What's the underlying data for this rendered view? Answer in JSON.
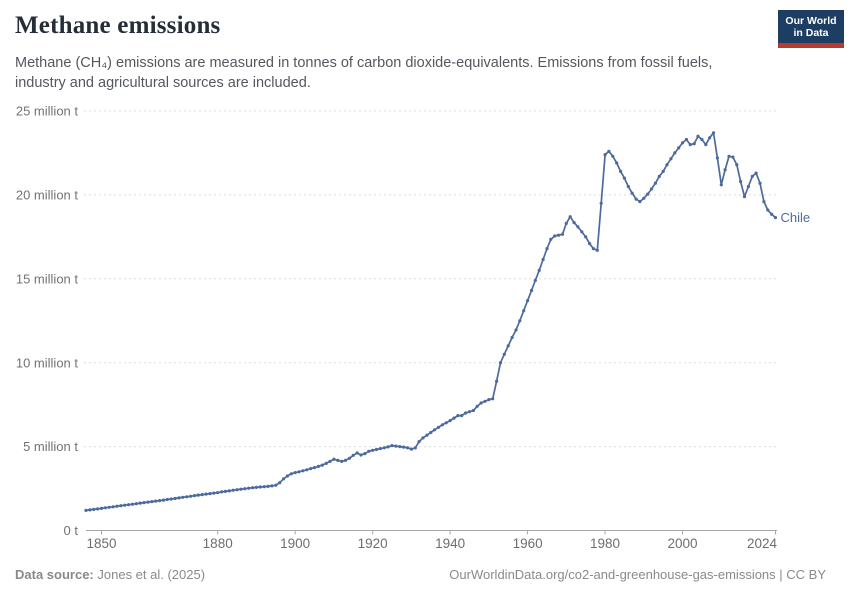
{
  "header": {
    "title": "Methane emissions",
    "subtitle": "Methane (CH₄) emissions are measured in tonnes of carbon dioxide-equivalents. Emissions from fossil fuels, industry and agricultural sources are included.",
    "logo_line1": "Our World",
    "logo_line2": "in Data",
    "logo_bg": "#1d3d63",
    "logo_accent": "#b73a31"
  },
  "footer": {
    "source_label": "Data source:",
    "source_value": "Jones et al. (2025)",
    "license": "OurWorldinData.org/co2-and-greenhouse-gas-emissions | CC BY"
  },
  "chart_data": {
    "type": "line",
    "title": "Methane emissions",
    "xlabel": "",
    "ylabel": "",
    "unit": "million tonnes of carbon dioxide-equivalents",
    "x_range": [
      1846,
      2024
    ],
    "y_range": [
      0,
      25
    ],
    "grid": "horizontal-dashed",
    "legend_position": "end-of-line-label",
    "entity_label": "Chile",
    "line_color": "#4C6A9C",
    "x_ticks": [
      1850,
      1880,
      1900,
      1920,
      1940,
      1960,
      1980,
      2000,
      2024
    ],
    "y_ticks": [
      {
        "value": 0,
        "label": "0 t"
      },
      {
        "value": 5,
        "label": "5 million t"
      },
      {
        "value": 10,
        "label": "10 million t"
      },
      {
        "value": 15,
        "label": "15 million t"
      },
      {
        "value": 20,
        "label": "20 million t"
      },
      {
        "value": 25,
        "label": "25 million t"
      }
    ],
    "series": [
      {
        "name": "Chile",
        "color": "#4C6A9C",
        "points": [
          [
            1846,
            1.2
          ],
          [
            1847,
            1.23
          ],
          [
            1848,
            1.26
          ],
          [
            1849,
            1.29
          ],
          [
            1850,
            1.32
          ],
          [
            1851,
            1.35
          ],
          [
            1852,
            1.38
          ],
          [
            1853,
            1.41
          ],
          [
            1854,
            1.45
          ],
          [
            1855,
            1.48
          ],
          [
            1856,
            1.51
          ],
          [
            1857,
            1.54
          ],
          [
            1858,
            1.57
          ],
          [
            1859,
            1.6
          ],
          [
            1860,
            1.63
          ],
          [
            1861,
            1.66
          ],
          [
            1862,
            1.69
          ],
          [
            1863,
            1.72
          ],
          [
            1864,
            1.75
          ],
          [
            1865,
            1.78
          ],
          [
            1866,
            1.81
          ],
          [
            1867,
            1.85
          ],
          [
            1868,
            1.88
          ],
          [
            1869,
            1.91
          ],
          [
            1870,
            1.94
          ],
          [
            1871,
            1.98
          ],
          [
            1872,
            2.01
          ],
          [
            1873,
            2.04
          ],
          [
            1874,
            2.08
          ],
          [
            1875,
            2.11
          ],
          [
            1876,
            2.14
          ],
          [
            1877,
            2.17
          ],
          [
            1878,
            2.2
          ],
          [
            1879,
            2.23
          ],
          [
            1880,
            2.26
          ],
          [
            1881,
            2.3
          ],
          [
            1882,
            2.33
          ],
          [
            1883,
            2.36
          ],
          [
            1884,
            2.4
          ],
          [
            1885,
            2.43
          ],
          [
            1886,
            2.46
          ],
          [
            1887,
            2.49
          ],
          [
            1888,
            2.52
          ],
          [
            1889,
            2.55
          ],
          [
            1890,
            2.57
          ],
          [
            1891,
            2.59
          ],
          [
            1892,
            2.61
          ],
          [
            1893,
            2.63
          ],
          [
            1894,
            2.66
          ],
          [
            1895,
            2.7
          ],
          [
            1896,
            2.85
          ],
          [
            1897,
            3.08
          ],
          [
            1898,
            3.25
          ],
          [
            1899,
            3.38
          ],
          [
            1900,
            3.45
          ],
          [
            1901,
            3.5
          ],
          [
            1902,
            3.56
          ],
          [
            1903,
            3.62
          ],
          [
            1904,
            3.69
          ],
          [
            1905,
            3.75
          ],
          [
            1906,
            3.82
          ],
          [
            1907,
            3.9
          ],
          [
            1908,
            4.0
          ],
          [
            1909,
            4.12
          ],
          [
            1910,
            4.25
          ],
          [
            1911,
            4.18
          ],
          [
            1912,
            4.12
          ],
          [
            1913,
            4.18
          ],
          [
            1914,
            4.3
          ],
          [
            1915,
            4.48
          ],
          [
            1916,
            4.62
          ],
          [
            1917,
            4.5
          ],
          [
            1918,
            4.58
          ],
          [
            1919,
            4.72
          ],
          [
            1920,
            4.78
          ],
          [
            1921,
            4.83
          ],
          [
            1922,
            4.88
          ],
          [
            1923,
            4.93
          ],
          [
            1924,
            4.98
          ],
          [
            1925,
            5.06
          ],
          [
            1926,
            5.03
          ],
          [
            1927,
            5.0
          ],
          [
            1928,
            4.97
          ],
          [
            1929,
            4.93
          ],
          [
            1930,
            4.85
          ],
          [
            1931,
            4.92
          ],
          [
            1932,
            5.3
          ],
          [
            1933,
            5.52
          ],
          [
            1934,
            5.68
          ],
          [
            1935,
            5.84
          ],
          [
            1936,
            6.0
          ],
          [
            1937,
            6.15
          ],
          [
            1938,
            6.3
          ],
          [
            1939,
            6.42
          ],
          [
            1940,
            6.55
          ],
          [
            1941,
            6.7
          ],
          [
            1942,
            6.85
          ],
          [
            1943,
            6.85
          ],
          [
            1944,
            7.0
          ],
          [
            1945,
            7.08
          ],
          [
            1946,
            7.15
          ],
          [
            1947,
            7.4
          ],
          [
            1948,
            7.6
          ],
          [
            1949,
            7.7
          ],
          [
            1950,
            7.8
          ],
          [
            1951,
            7.85
          ],
          [
            1952,
            8.9
          ],
          [
            1953,
            10.0
          ],
          [
            1954,
            10.5
          ],
          [
            1955,
            11.0
          ],
          [
            1956,
            11.5
          ],
          [
            1957,
            11.95
          ],
          [
            1958,
            12.5
          ],
          [
            1959,
            13.1
          ],
          [
            1960,
            13.7
          ],
          [
            1961,
            14.3
          ],
          [
            1962,
            14.9
          ],
          [
            1963,
            15.5
          ],
          [
            1964,
            16.15
          ],
          [
            1965,
            16.8
          ],
          [
            1966,
            17.35
          ],
          [
            1967,
            17.55
          ],
          [
            1968,
            17.6
          ],
          [
            1969,
            17.65
          ],
          [
            1970,
            18.3
          ],
          [
            1971,
            18.7
          ],
          [
            1972,
            18.35
          ],
          [
            1973,
            18.1
          ],
          [
            1974,
            17.8
          ],
          [
            1975,
            17.5
          ],
          [
            1976,
            17.1
          ],
          [
            1977,
            16.8
          ],
          [
            1978,
            16.7
          ],
          [
            1979,
            19.5
          ],
          [
            1980,
            22.4
          ],
          [
            1981,
            22.6
          ],
          [
            1982,
            22.3
          ],
          [
            1983,
            21.9
          ],
          [
            1984,
            21.4
          ],
          [
            1985,
            21.0
          ],
          [
            1986,
            20.5
          ],
          [
            1987,
            20.1
          ],
          [
            1988,
            19.75
          ],
          [
            1989,
            19.6
          ],
          [
            1990,
            19.8
          ],
          [
            1991,
            20.05
          ],
          [
            1992,
            20.35
          ],
          [
            1993,
            20.7
          ],
          [
            1994,
            21.1
          ],
          [
            1995,
            21.4
          ],
          [
            1996,
            21.8
          ],
          [
            1997,
            22.15
          ],
          [
            1998,
            22.5
          ],
          [
            1999,
            22.8
          ],
          [
            2000,
            23.1
          ],
          [
            2001,
            23.3
          ],
          [
            2002,
            23.0
          ],
          [
            2003,
            23.05
          ],
          [
            2004,
            23.5
          ],
          [
            2005,
            23.3
          ],
          [
            2006,
            23.0
          ],
          [
            2007,
            23.4
          ],
          [
            2008,
            23.7
          ],
          [
            2009,
            22.2
          ],
          [
            2010,
            20.6
          ],
          [
            2011,
            21.5
          ],
          [
            2012,
            22.3
          ],
          [
            2013,
            22.25
          ],
          [
            2014,
            21.8
          ],
          [
            2015,
            20.8
          ],
          [
            2016,
            19.9
          ],
          [
            2017,
            20.5
          ],
          [
            2018,
            21.1
          ],
          [
            2019,
            21.3
          ],
          [
            2020,
            20.7
          ],
          [
            2021,
            19.6
          ],
          [
            2022,
            19.1
          ],
          [
            2023,
            18.85
          ],
          [
            2024,
            18.65
          ]
        ]
      }
    ]
  }
}
